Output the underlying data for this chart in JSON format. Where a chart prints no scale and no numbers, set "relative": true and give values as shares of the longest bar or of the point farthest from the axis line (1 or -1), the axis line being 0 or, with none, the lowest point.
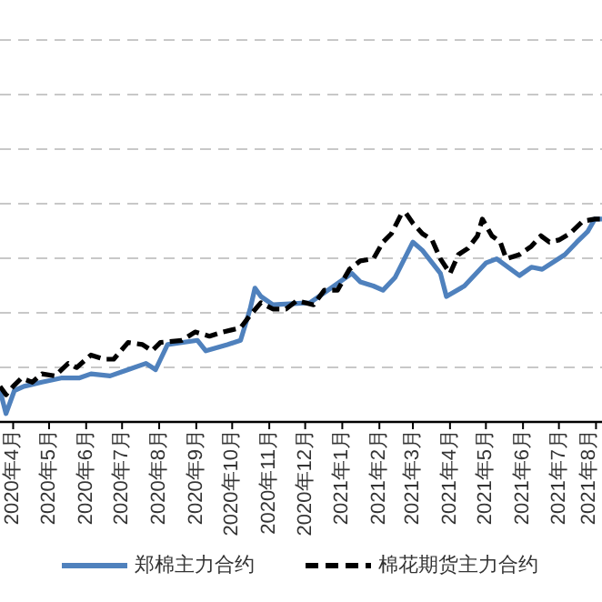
{
  "chart_data": {
    "type": "line",
    "relative": true,
    "grid": "y",
    "legend": "bottom",
    "marker": "none",
    "xlim": [
      "2020-03-21",
      "2021-08-06"
    ],
    "xticks": [
      {
        "value": "2020-04-01",
        "label": "2020年4月"
      },
      {
        "value": "2020-05-01",
        "label": "2020年5月"
      },
      {
        "value": "2020-06-01",
        "label": "2020年6月"
      },
      {
        "value": "2020-07-01",
        "label": "2020年7月"
      },
      {
        "value": "2020-08-01",
        "label": "2020年8月"
      },
      {
        "value": "2020-09-01",
        "label": "2020年9月"
      },
      {
        "value": "2020-10-01",
        "label": "2020年10月"
      },
      {
        "value": "2020-11-01",
        "label": "2020年11月"
      },
      {
        "value": "2020-12-01",
        "label": "2020年12月"
      },
      {
        "value": "2021-01-01",
        "label": "2021年1月"
      },
      {
        "value": "2021-02-01",
        "label": "2021年2月"
      },
      {
        "value": "2021-03-01",
        "label": "2021年3月"
      },
      {
        "value": "2021-04-01",
        "label": "2021年4月"
      },
      {
        "value": "2021-05-01",
        "label": "2021年5月"
      },
      {
        "value": "2021-06-01",
        "label": "2021年6月"
      },
      {
        "value": "2021-07-01",
        "label": "2021年7月"
      },
      {
        "value": "2021-08-01",
        "label": "2021年8月"
      }
    ],
    "series": [
      {
        "name": "郑棉主力合约",
        "color": "#4f81bd",
        "line_style": "solid",
        "x": [
          "2020-03-21",
          "2020-03-26",
          "2020-04-02",
          "2020-04-10",
          "2020-04-25",
          "2020-05-11",
          "2020-05-26",
          "2020-06-05",
          "2020-06-21",
          "2020-07-06",
          "2020-07-21",
          "2020-07-29",
          "2020-08-08",
          "2020-09-02",
          "2020-09-09",
          "2020-09-27",
          "2020-10-08",
          "2020-10-16",
          "2020-10-20",
          "2020-10-25",
          "2020-11-04",
          "2020-12-05",
          "2020-12-20",
          "2021-01-09",
          "2021-01-16",
          "2021-01-27",
          "2021-02-04",
          "2021-02-14",
          "2021-03-01",
          "2021-03-09",
          "2021-03-24",
          "2021-03-29",
          "2021-04-13",
          "2021-05-01",
          "2021-05-10",
          "2021-05-29",
          "2021-06-08",
          "2021-06-17",
          "2021-07-06",
          "2021-07-16",
          "2021-07-25",
          "2021-07-31",
          "2021-08-06"
        ],
        "values": [
          0.15,
          0.04,
          0.15,
          0.17,
          0.19,
          0.21,
          0.21,
          0.23,
          0.22,
          0.25,
          0.28,
          0.25,
          0.37,
          0.39,
          0.34,
          0.37,
          0.39,
          0.54,
          0.64,
          0.6,
          0.56,
          0.57,
          0.63,
          0.71,
          0.67,
          0.65,
          0.63,
          0.69,
          0.86,
          0.82,
          0.71,
          0.6,
          0.65,
          0.76,
          0.78,
          0.7,
          0.74,
          0.73,
          0.8,
          0.86,
          0.91,
          0.97,
          0.97
        ]
      },
      {
        "name": "棉花期货主力合约",
        "color": "#000000",
        "line_style": "dashed",
        "x": [
          "2020-03-21",
          "2020-03-26",
          "2020-04-01",
          "2020-04-08",
          "2020-04-17",
          "2020-04-25",
          "2020-05-06",
          "2020-05-17",
          "2020-05-24",
          "2020-06-05",
          "2020-06-16",
          "2020-06-24",
          "2020-07-06",
          "2020-07-18",
          "2020-07-26",
          "2020-08-02",
          "2020-08-20",
          "2020-08-31",
          "2020-09-12",
          "2020-09-23",
          "2020-10-08",
          "2020-10-16",
          "2020-10-25",
          "2020-11-04",
          "2020-11-15",
          "2020-11-24",
          "2020-12-08",
          "2020-12-17",
          "2020-12-28",
          "2021-01-07",
          "2021-01-16",
          "2021-01-27",
          "2021-02-04",
          "2021-02-11",
          "2021-02-19",
          "2021-02-23",
          "2021-03-01",
          "2021-03-09",
          "2021-03-17",
          "2021-03-24",
          "2021-04-01",
          "2021-04-08",
          "2021-04-16",
          "2021-04-24",
          "2021-04-28",
          "2021-05-06",
          "2021-05-13",
          "2021-05-18",
          "2021-05-29",
          "2021-06-08",
          "2021-06-16",
          "2021-06-23",
          "2021-07-01",
          "2021-07-10",
          "2021-07-21",
          "2021-07-31",
          "2021-08-06"
        ],
        "values": [
          0.17,
          0.13,
          0.17,
          0.21,
          0.19,
          0.23,
          0.22,
          0.28,
          0.26,
          0.32,
          0.3,
          0.3,
          0.38,
          0.37,
          0.34,
          0.38,
          0.39,
          0.43,
          0.41,
          0.43,
          0.45,
          0.51,
          0.57,
          0.54,
          0.54,
          0.58,
          0.56,
          0.63,
          0.63,
          0.73,
          0.77,
          0.78,
          0.86,
          0.9,
          0.99,
          1,
          0.95,
          0.9,
          0.87,
          0.78,
          0.71,
          0.8,
          0.83,
          0.89,
          0.97,
          0.89,
          0.86,
          0.78,
          0.8,
          0.84,
          0.89,
          0.86,
          0.87,
          0.9,
          0.96,
          0.97,
          0.97
        ]
      }
    ]
  }
}
